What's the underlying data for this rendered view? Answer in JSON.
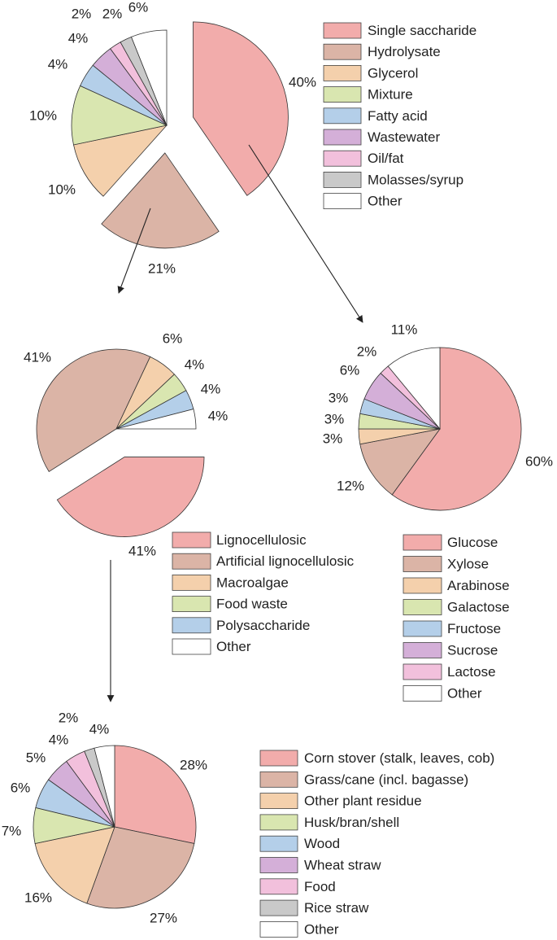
{
  "chart_data": [
    {
      "type": "pie",
      "title": "",
      "categories": [
        "Single saccharide",
        "Hydrolysate",
        "Glycerol",
        "Mixture",
        "Fatty acid",
        "Wastewater",
        "Oil/fat",
        "Molasses/syrup",
        "Other"
      ],
      "values": [
        40,
        21,
        10,
        10,
        4,
        4,
        2,
        2,
        6
      ],
      "labels": [
        "40%",
        "21%",
        "10%",
        "10%",
        "4%",
        "4%",
        "2%",
        "2%",
        "6%"
      ],
      "colors": [
        "#f2acab",
        "#dbb4a6",
        "#f4d0ac",
        "#d9e6b0",
        "#b4cfe9",
        "#d4afd8",
        "#f2c0dc",
        "#c9c9c9",
        "#ffffff"
      ],
      "exploded": [
        "Single saccharide",
        "Hydrolysate"
      ],
      "legend_position": "right"
    },
    {
      "type": "pie",
      "title": "",
      "categories": [
        "Lignocellulosic",
        "Artificial lignocellulosic",
        "Macroalgae",
        "Food waste",
        "Polysaccharide",
        "Other"
      ],
      "values": [
        41,
        41,
        6,
        4,
        4,
        4
      ],
      "labels": [
        "41%",
        "41%",
        "6%",
        "4%",
        "4%",
        "4%"
      ],
      "colors": [
        "#f2acab",
        "#dbb4a6",
        "#f4d0ac",
        "#d9e6b0",
        "#b4cfe9",
        "#ffffff"
      ],
      "exploded": [
        "Lignocellulosic"
      ],
      "legend_position": "below",
      "breakdown_of": "Hydrolysate"
    },
    {
      "type": "pie",
      "title": "",
      "categories": [
        "Glucose",
        "Xylose",
        "Arabinose",
        "Galactose",
        "Fructose",
        "Sucrose",
        "Lactose",
        "Other"
      ],
      "values": [
        60,
        12,
        3,
        3,
        3,
        6,
        2,
        11
      ],
      "labels": [
        "60%",
        "12%",
        "3%",
        "3%",
        "3%",
        "6%",
        "2%",
        "11%"
      ],
      "colors": [
        "#f2acab",
        "#dbb4a6",
        "#f4d0ac",
        "#d9e6b0",
        "#b4cfe9",
        "#d4afd8",
        "#f2c0dc",
        "#ffffff"
      ],
      "exploded": [],
      "legend_position": "below",
      "breakdown_of": "Single saccharide"
    },
    {
      "type": "pie",
      "title": "",
      "categories": [
        "Corn stover (stalk, leaves, cob)",
        "Grass/cane (incl. bagasse)",
        "Other plant residue",
        "Husk/bran/shell",
        "Wood",
        "Wheat straw",
        "Food",
        "Rice straw",
        "Other"
      ],
      "values": [
        28,
        27,
        16,
        7,
        6,
        5,
        4,
        2,
        4
      ],
      "labels": [
        "28%",
        "27%",
        "16%",
        "7%",
        "6%",
        "5%",
        "4%",
        "2%",
        "4%"
      ],
      "colors": [
        "#f2acab",
        "#dbb4a6",
        "#f4d0ac",
        "#d9e6b0",
        "#b4cfe9",
        "#d4afd8",
        "#f2c0dc",
        "#c9c9c9",
        "#ffffff"
      ],
      "exploded": [],
      "legend_position": "right",
      "breakdown_of": "Lignocellulosic"
    }
  ]
}
